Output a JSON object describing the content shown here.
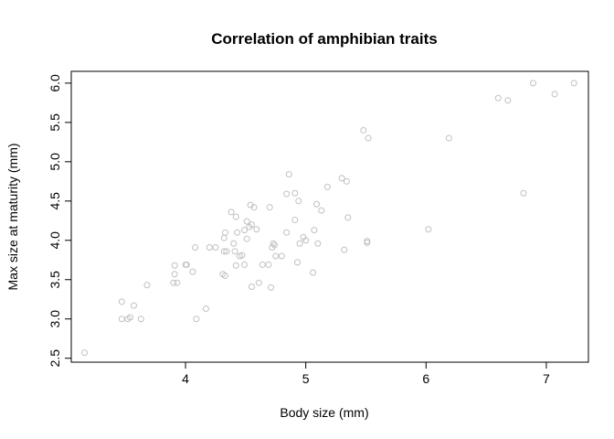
{
  "chart_data": {
    "type": "scatter",
    "title": "Correlation of amphibian traits",
    "xlabel": "Body size (mm)",
    "ylabel": "Max size at maturity (mm)",
    "xlim": [
      3.05,
      7.35
    ],
    "ylim": [
      2.45,
      6.15
    ],
    "xticks": [
      4,
      5,
      6,
      7
    ],
    "yticks": [
      2.5,
      3.0,
      3.5,
      4.0,
      4.5,
      5.0,
      5.5,
      6.0
    ],
    "xtick_labels": [
      "4",
      "5",
      "6",
      "7"
    ],
    "ytick_labels": [
      "2.5",
      "3.0",
      "3.5",
      "4.0",
      "4.5",
      "5.0",
      "5.5",
      "6.0"
    ],
    "grid": false,
    "legend": "none",
    "point_color": "#c0c0c0",
    "points": [
      [
        3.16,
        2.57
      ],
      [
        3.47,
        3.22
      ],
      [
        3.47,
        3.0
      ],
      [
        3.52,
        3.0
      ],
      [
        3.54,
        3.02
      ],
      [
        3.57,
        3.17
      ],
      [
        3.63,
        3.0
      ],
      [
        3.68,
        3.43
      ],
      [
        3.9,
        3.46
      ],
      [
        3.91,
        3.68
      ],
      [
        3.91,
        3.57
      ],
      [
        3.93,
        3.46
      ],
      [
        4.0,
        3.69
      ],
      [
        4.01,
        3.69
      ],
      [
        4.06,
        3.6
      ],
      [
        4.08,
        3.91
      ],
      [
        4.09,
        3.0
      ],
      [
        4.17,
        3.13
      ],
      [
        4.2,
        3.91
      ],
      [
        4.25,
        3.91
      ],
      [
        4.31,
        3.57
      ],
      [
        4.32,
        4.03
      ],
      [
        4.33,
        4.1
      ],
      [
        4.32,
        3.86
      ],
      [
        4.34,
        3.86
      ],
      [
        4.33,
        3.55
      ],
      [
        4.38,
        4.36
      ],
      [
        4.4,
        3.96
      ],
      [
        4.41,
        3.86
      ],
      [
        4.42,
        4.3
      ],
      [
        4.43,
        4.1
      ],
      [
        4.42,
        3.68
      ],
      [
        4.45,
        3.8
      ],
      [
        4.47,
        3.81
      ],
      [
        4.49,
        4.13
      ],
      [
        4.49,
        3.69
      ],
      [
        4.51,
        4.24
      ],
      [
        4.51,
        4.02
      ],
      [
        4.54,
        4.45
      ],
      [
        4.53,
        4.17
      ],
      [
        4.55,
        4.2
      ],
      [
        4.55,
        3.41
      ],
      [
        4.57,
        4.42
      ],
      [
        4.59,
        4.14
      ],
      [
        4.61,
        3.46
      ],
      [
        4.64,
        3.69
      ],
      [
        4.69,
        3.69
      ],
      [
        4.7,
        4.42
      ],
      [
        4.71,
        3.4
      ],
      [
        4.72,
        3.91
      ],
      [
        4.73,
        3.96
      ],
      [
        4.74,
        3.94
      ],
      [
        4.75,
        3.8
      ],
      [
        4.8,
        3.8
      ],
      [
        4.84,
        4.1
      ],
      [
        4.84,
        4.59
      ],
      [
        4.86,
        4.84
      ],
      [
        4.91,
        4.6
      ],
      [
        4.91,
        4.26
      ],
      [
        4.93,
        3.72
      ],
      [
        4.94,
        4.5
      ],
      [
        4.95,
        3.96
      ],
      [
        4.98,
        4.04
      ],
      [
        5.0,
        4.0
      ],
      [
        5.06,
        3.59
      ],
      [
        5.07,
        4.13
      ],
      [
        5.09,
        4.46
      ],
      [
        5.1,
        3.96
      ],
      [
        5.13,
        4.38
      ],
      [
        5.18,
        4.68
      ],
      [
        5.3,
        4.79
      ],
      [
        5.32,
        3.88
      ],
      [
        5.34,
        4.75
      ],
      [
        5.35,
        4.29
      ],
      [
        5.48,
        5.4
      ],
      [
        5.51,
        3.99
      ],
      [
        5.51,
        3.97
      ],
      [
        5.52,
        5.3
      ],
      [
        6.02,
        4.14
      ],
      [
        6.19,
        5.3
      ],
      [
        6.6,
        5.81
      ],
      [
        6.68,
        5.78
      ],
      [
        6.81,
        4.6
      ],
      [
        6.89,
        6.0
      ],
      [
        7.07,
        5.86
      ],
      [
        7.23,
        6.0
      ]
    ]
  }
}
